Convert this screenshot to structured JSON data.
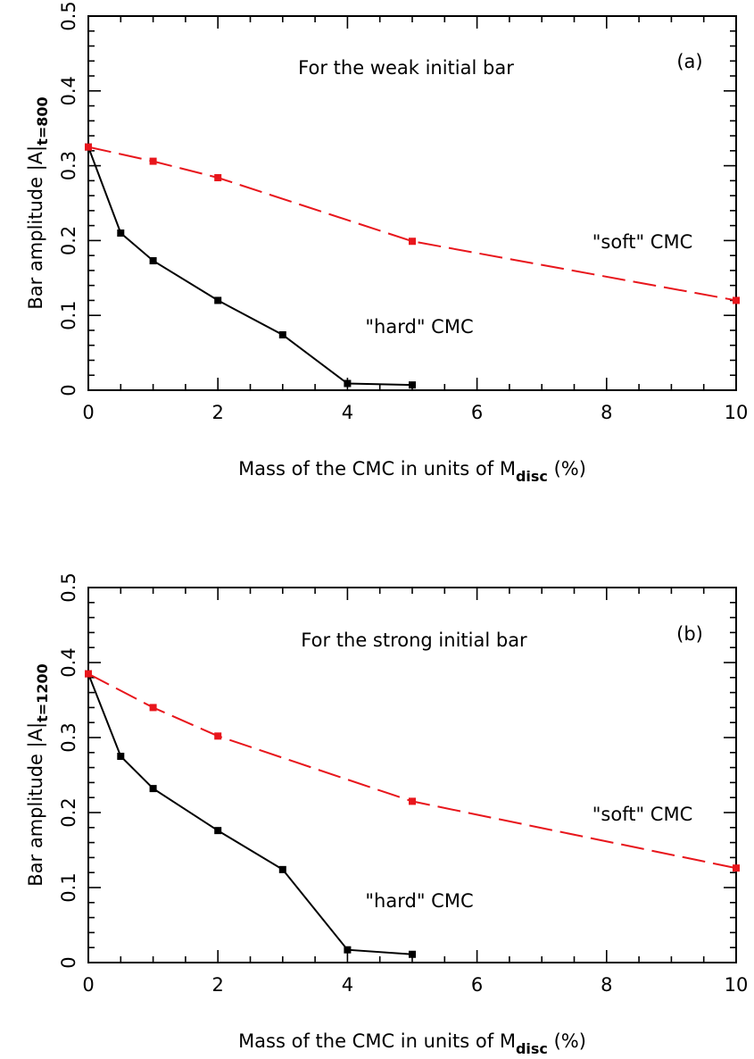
{
  "colors": {
    "hard": "#000000",
    "soft": "#e8161c"
  },
  "chart_data": [
    {
      "type": "line",
      "panel_label": "(a)",
      "annotation": "For the weak initial bar",
      "xlabel": {
        "main": "Mass of the CMC in units of M",
        "sub": "disc",
        "suffix": " (%)"
      },
      "ylabel": {
        "main": "Bar amplitude |A|",
        "sub": "t=800"
      },
      "xlim": [
        0,
        10
      ],
      "ylim": [
        0,
        0.5
      ],
      "x_ticks": [
        "0",
        "2",
        "4",
        "6",
        "8",
        "10"
      ],
      "y_ticks": [
        "0",
        "0.1",
        "0.2",
        "0.3",
        "0.4",
        "0.5"
      ],
      "grid": false,
      "series": [
        {
          "name": "\"hard\" CMC",
          "style": "solid",
          "color": "#000000",
          "x": [
            0,
            0.5,
            1,
            2,
            3,
            4,
            5
          ],
          "y": [
            0.325,
            0.21,
            0.173,
            0.12,
            0.074,
            0.009,
            0.007
          ]
        },
        {
          "name": "\"soft\" CMC",
          "style": "dashed",
          "color": "#e8161c",
          "x": [
            0,
            1,
            2,
            5,
            10
          ],
          "y": [
            0.325,
            0.306,
            0.284,
            0.199,
            0.12
          ]
        }
      ]
    },
    {
      "type": "line",
      "panel_label": "(b)",
      "annotation": "For the strong initial bar",
      "xlabel": {
        "main": "Mass of the CMC in units of M",
        "sub": "disc",
        "suffix": " (%)"
      },
      "ylabel": {
        "main": "Bar amplitude |A|",
        "sub": "t=1200"
      },
      "xlim": [
        0,
        10
      ],
      "ylim": [
        0,
        0.5
      ],
      "x_ticks": [
        "0",
        "2",
        "4",
        "6",
        "8",
        "10"
      ],
      "y_ticks": [
        "0",
        "0.1",
        "0.2",
        "0.3",
        "0.4",
        "0.5"
      ],
      "grid": false,
      "series": [
        {
          "name": "\"hard\" CMC",
          "style": "solid",
          "color": "#000000",
          "x": [
            0,
            0.5,
            1,
            2,
            3,
            4,
            5
          ],
          "y": [
            0.385,
            0.275,
            0.232,
            0.176,
            0.124,
            0.017,
            0.011
          ]
        },
        {
          "name": "\"soft\" CMC",
          "style": "dashed",
          "color": "#e8161c",
          "x": [
            0,
            1,
            2,
            5,
            10
          ],
          "y": [
            0.385,
            0.34,
            0.302,
            0.215,
            0.126
          ]
        }
      ]
    }
  ]
}
